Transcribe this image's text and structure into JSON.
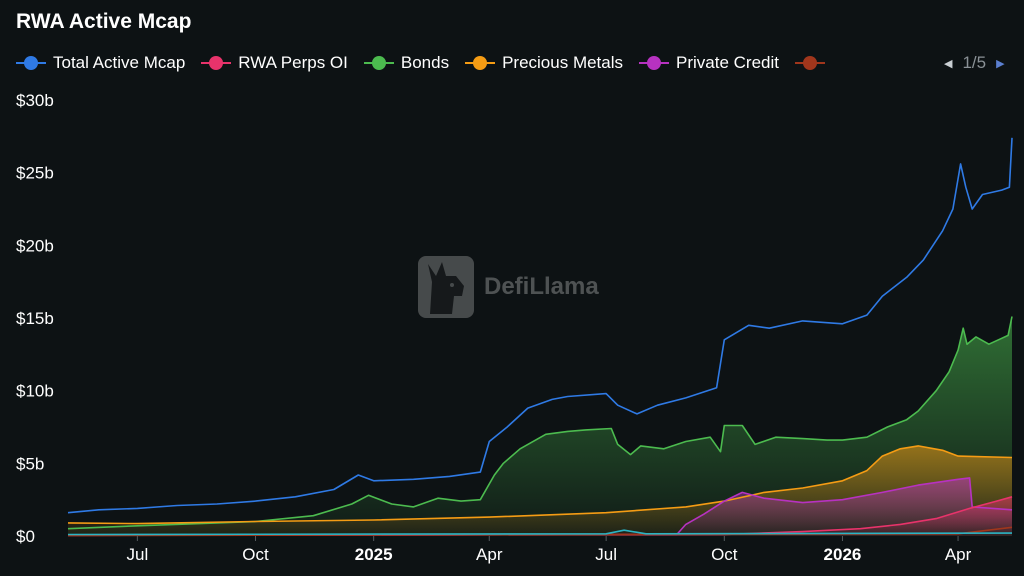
{
  "title": "RWA Active Mcap",
  "legend": {
    "items": [
      {
        "label": "Total Active Mcap",
        "color": "#2f7ae5"
      },
      {
        "label": "RWA Perps OI",
        "color": "#e8336b"
      },
      {
        "label": "Bonds",
        "color": "#4cbb4f"
      },
      {
        "label": "Precious Metals",
        "color": "#f59c14"
      },
      {
        "label": "Private Credit",
        "color": "#b732c1"
      },
      {
        "label": "",
        "color": "#a0361c"
      }
    ],
    "page": "1/5",
    "prev_icon": "caret-left-icon",
    "next_icon": "caret-right-icon"
  },
  "watermark": {
    "text": "DefiLlama",
    "icon": "llama-logo-icon"
  },
  "chart_data": {
    "type": "area",
    "title": "RWA Active Mcap",
    "x_ticks": [
      {
        "date": "2024-07-01",
        "label": "Jul",
        "bold": false
      },
      {
        "date": "2024-10-01",
        "label": "Oct",
        "bold": false
      },
      {
        "date": "2025-01-01",
        "label": "2025",
        "bold": true
      },
      {
        "date": "2025-04-01",
        "label": "Apr",
        "bold": false
      },
      {
        "date": "2025-07-01",
        "label": "Jul",
        "bold": false
      },
      {
        "date": "2025-10-01",
        "label": "Oct",
        "bold": false
      },
      {
        "date": "2026-01-01",
        "label": "2026",
        "bold": true
      },
      {
        "date": "2026-04-01",
        "label": "Apr",
        "bold": false
      }
    ],
    "xlim": [
      "2024-05-08",
      "2026-05-13"
    ],
    "y_ticks": [
      {
        "value": 0,
        "label": "$0"
      },
      {
        "value": 5,
        "label": "$5b"
      },
      {
        "value": 10,
        "label": "$10b"
      },
      {
        "value": 15,
        "label": "$15b"
      },
      {
        "value": 20,
        "label": "$20b"
      },
      {
        "value": 25,
        "label": "$25b"
      },
      {
        "value": 30,
        "label": "$30b"
      }
    ],
    "ylim": [
      0,
      30
    ],
    "y_unit": "billions USD",
    "grid": false,
    "legend_position": "top",
    "series": [
      {
        "name": "Bonds",
        "color": "#4cbb4f",
        "fill": true,
        "points": [
          [
            "2024-05-08",
            0.5
          ],
          [
            "2024-07-01",
            0.7
          ],
          [
            "2024-10-01",
            1.0
          ],
          [
            "2024-11-15",
            1.4
          ],
          [
            "2024-12-15",
            2.2
          ],
          [
            "2024-12-28",
            2.8
          ],
          [
            "2025-01-15",
            2.2
          ],
          [
            "2025-02-01",
            2.0
          ],
          [
            "2025-02-20",
            2.6
          ],
          [
            "2025-03-10",
            2.4
          ],
          [
            "2025-03-25",
            2.5
          ],
          [
            "2025-04-05",
            4.2
          ],
          [
            "2025-04-12",
            5.0
          ],
          [
            "2025-04-25",
            6.0
          ],
          [
            "2025-05-15",
            7.0
          ],
          [
            "2025-06-01",
            7.2
          ],
          [
            "2025-06-15",
            7.3
          ],
          [
            "2025-07-05",
            7.4
          ],
          [
            "2025-07-10",
            6.3
          ],
          [
            "2025-07-20",
            5.6
          ],
          [
            "2025-07-28",
            6.2
          ],
          [
            "2025-08-15",
            6.0
          ],
          [
            "2025-09-01",
            6.5
          ],
          [
            "2025-09-20",
            6.8
          ],
          [
            "2025-09-28",
            5.8
          ],
          [
            "2025-10-01",
            7.6
          ],
          [
            "2025-10-15",
            7.6
          ],
          [
            "2025-10-25",
            6.3
          ],
          [
            "2025-11-10",
            6.8
          ],
          [
            "2025-12-01",
            6.7
          ],
          [
            "2025-12-20",
            6.6
          ],
          [
            "2026-01-01",
            6.6
          ],
          [
            "2026-01-20",
            6.8
          ],
          [
            "2026-02-05",
            7.5
          ],
          [
            "2026-02-20",
            8.0
          ],
          [
            "2026-03-01",
            8.6
          ],
          [
            "2026-03-15",
            10.0
          ],
          [
            "2026-03-25",
            11.3
          ],
          [
            "2026-04-01",
            12.8
          ],
          [
            "2026-04-05",
            14.3
          ],
          [
            "2026-04-08",
            13.2
          ],
          [
            "2026-04-15",
            13.7
          ],
          [
            "2026-04-25",
            13.2
          ],
          [
            "2026-05-05",
            13.6
          ],
          [
            "2026-05-10",
            13.8
          ],
          [
            "2026-05-13",
            15.1
          ]
        ]
      },
      {
        "name": "Precious Metals",
        "color": "#f59c14",
        "fill": true,
        "points": [
          [
            "2024-05-08",
            0.9
          ],
          [
            "2024-07-01",
            0.85
          ],
          [
            "2024-10-01",
            1.0
          ],
          [
            "2025-01-01",
            1.1
          ],
          [
            "2025-04-01",
            1.3
          ],
          [
            "2025-07-01",
            1.6
          ],
          [
            "2025-09-01",
            2.0
          ],
          [
            "2025-10-01",
            2.4
          ],
          [
            "2025-11-01",
            3.0
          ],
          [
            "2025-12-01",
            3.3
          ],
          [
            "2026-01-01",
            3.8
          ],
          [
            "2026-01-20",
            4.5
          ],
          [
            "2026-02-01",
            5.5
          ],
          [
            "2026-02-15",
            6.0
          ],
          [
            "2026-03-01",
            6.2
          ],
          [
            "2026-03-20",
            5.9
          ],
          [
            "2026-04-01",
            5.5
          ],
          [
            "2026-05-13",
            5.4
          ]
        ]
      },
      {
        "name": "Private Credit",
        "color": "#b732c1",
        "fill": true,
        "points": [
          [
            "2024-05-08",
            0.05
          ],
          [
            "2025-08-25",
            0.1
          ],
          [
            "2025-09-01",
            0.8
          ],
          [
            "2025-09-15",
            1.5
          ],
          [
            "2025-10-01",
            2.4
          ],
          [
            "2025-10-15",
            3.0
          ],
          [
            "2025-11-01",
            2.6
          ],
          [
            "2025-12-01",
            2.3
          ],
          [
            "2026-01-01",
            2.5
          ],
          [
            "2026-02-01",
            3.0
          ],
          [
            "2026-03-01",
            3.5
          ],
          [
            "2026-04-01",
            3.9
          ],
          [
            "2026-04-10",
            4.0
          ],
          [
            "2026-04-12",
            2.0
          ],
          [
            "2026-05-13",
            1.8
          ]
        ]
      },
      {
        "name": "RWA Perps OI",
        "color": "#e8336b",
        "fill": true,
        "points": [
          [
            "2024-05-08",
            0.05
          ],
          [
            "2025-10-01",
            0.1
          ],
          [
            "2025-12-01",
            0.3
          ],
          [
            "2026-01-15",
            0.5
          ],
          [
            "2026-02-15",
            0.8
          ],
          [
            "2026-03-15",
            1.2
          ],
          [
            "2026-04-10",
            1.9
          ],
          [
            "2026-05-01",
            2.4
          ],
          [
            "2026-05-13",
            2.7
          ]
        ]
      },
      {
        "name": "",
        "color": "#a0361c",
        "fill": false,
        "points": [
          [
            "2024-05-08",
            0.03
          ],
          [
            "2026-04-01",
            0.15
          ],
          [
            "2026-05-13",
            0.6
          ]
        ]
      },
      {
        "name": "Total Active Mcap",
        "color": "#2f7ae5",
        "fill": false,
        "points": [
          [
            "2024-05-08",
            1.6
          ],
          [
            "2024-06-01",
            1.8
          ],
          [
            "2024-07-01",
            1.9
          ],
          [
            "2024-08-01",
            2.1
          ],
          [
            "2024-09-01",
            2.2
          ],
          [
            "2024-10-01",
            2.4
          ],
          [
            "2024-11-01",
            2.7
          ],
          [
            "2024-12-01",
            3.2
          ],
          [
            "2024-12-20",
            4.2
          ],
          [
            "2025-01-01",
            3.8
          ],
          [
            "2025-02-01",
            3.9
          ],
          [
            "2025-03-01",
            4.1
          ],
          [
            "2025-03-25",
            4.4
          ],
          [
            "2025-04-01",
            6.5
          ],
          [
            "2025-04-15",
            7.5
          ],
          [
            "2025-05-01",
            8.8
          ],
          [
            "2025-05-20",
            9.4
          ],
          [
            "2025-06-01",
            9.6
          ],
          [
            "2025-07-01",
            9.8
          ],
          [
            "2025-07-10",
            9.0
          ],
          [
            "2025-07-25",
            8.4
          ],
          [
            "2025-08-10",
            9.0
          ],
          [
            "2025-09-01",
            9.5
          ],
          [
            "2025-09-25",
            10.2
          ],
          [
            "2025-10-01",
            13.5
          ],
          [
            "2025-10-20",
            14.5
          ],
          [
            "2025-11-05",
            14.3
          ],
          [
            "2025-12-01",
            14.8
          ],
          [
            "2026-01-01",
            14.6
          ],
          [
            "2026-01-20",
            15.2
          ],
          [
            "2026-02-01",
            16.5
          ],
          [
            "2026-02-20",
            17.8
          ],
          [
            "2026-03-05",
            19.0
          ],
          [
            "2026-03-20",
            21.0
          ],
          [
            "2026-03-28",
            22.5
          ],
          [
            "2026-04-03",
            25.6
          ],
          [
            "2026-04-07",
            24.0
          ],
          [
            "2026-04-12",
            22.5
          ],
          [
            "2026-04-20",
            23.5
          ],
          [
            "2026-05-05",
            23.8
          ],
          [
            "2026-05-11",
            24.0
          ],
          [
            "2026-05-13",
            27.4
          ]
        ]
      },
      {
        "name": "",
        "color": "#2ab4c4",
        "fill": false,
        "points": [
          [
            "2024-05-08",
            0.1
          ],
          [
            "2025-07-01",
            0.15
          ],
          [
            "2025-07-15",
            0.4
          ],
          [
            "2025-08-01",
            0.15
          ],
          [
            "2026-05-13",
            0.2
          ]
        ]
      }
    ]
  }
}
